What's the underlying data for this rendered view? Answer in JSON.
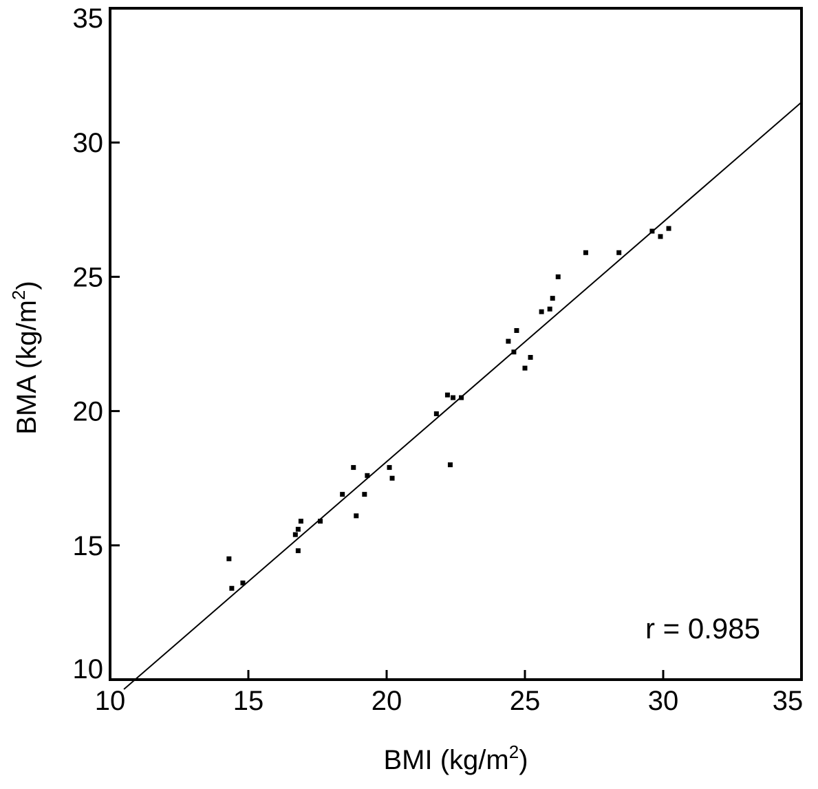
{
  "chart_data": {
    "type": "scatter",
    "x_label": {
      "text": "BMI (kg/m",
      "sup": "2",
      "close": ")"
    },
    "y_label": {
      "text": "BMA (kg/m",
      "sup": "2",
      "close": ")"
    },
    "xlim": [
      10,
      35
    ],
    "ylim": [
      10,
      35
    ],
    "x_ticks": [
      10,
      15,
      20,
      25,
      30,
      35
    ],
    "y_ticks": [
      10,
      15,
      20,
      25,
      30,
      35
    ],
    "grid": false,
    "annotation": "r = 0.985",
    "points": [
      {
        "x": 14.3,
        "y": 14.5
      },
      {
        "x": 14.4,
        "y": 13.4
      },
      {
        "x": 14.8,
        "y": 13.6
      },
      {
        "x": 16.7,
        "y": 15.4
      },
      {
        "x": 16.8,
        "y": 15.6
      },
      {
        "x": 16.9,
        "y": 15.9
      },
      {
        "x": 16.8,
        "y": 14.8
      },
      {
        "x": 17.6,
        "y": 15.9
      },
      {
        "x": 18.4,
        "y": 16.9
      },
      {
        "x": 18.8,
        "y": 17.9
      },
      {
        "x": 18.9,
        "y": 16.1
      },
      {
        "x": 19.2,
        "y": 16.9
      },
      {
        "x": 19.3,
        "y": 17.6
      },
      {
        "x": 20.1,
        "y": 17.9
      },
      {
        "x": 20.2,
        "y": 17.5
      },
      {
        "x": 21.8,
        "y": 19.9
      },
      {
        "x": 22.2,
        "y": 20.6
      },
      {
        "x": 22.3,
        "y": 18.0
      },
      {
        "x": 22.4,
        "y": 20.5
      },
      {
        "x": 22.7,
        "y": 20.5
      },
      {
        "x": 24.4,
        "y": 22.6
      },
      {
        "x": 24.6,
        "y": 22.2
      },
      {
        "x": 24.7,
        "y": 23.0
      },
      {
        "x": 25.0,
        "y": 21.6
      },
      {
        "x": 25.2,
        "y": 22.0
      },
      {
        "x": 25.6,
        "y": 23.7
      },
      {
        "x": 25.9,
        "y": 23.8
      },
      {
        "x": 26.0,
        "y": 24.2
      },
      {
        "x": 26.2,
        "y": 25.0
      },
      {
        "x": 27.2,
        "y": 25.9
      },
      {
        "x": 28.4,
        "y": 25.9
      },
      {
        "x": 29.6,
        "y": 26.7
      },
      {
        "x": 29.9,
        "y": 26.5
      },
      {
        "x": 30.2,
        "y": 26.8
      }
    ],
    "regression_line": {
      "x1": 10.5,
      "y1": 9.64,
      "x2": 35.0,
      "y2": 31.5
    }
  }
}
